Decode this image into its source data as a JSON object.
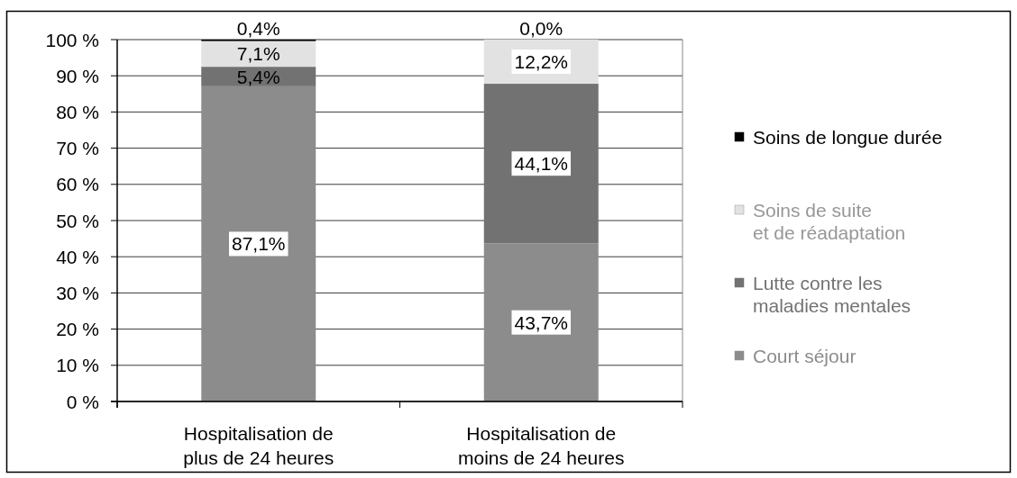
{
  "chart_data": {
    "type": "bar",
    "stacked": true,
    "categories": [
      "Hospitalisation de\nplus de 24 heures",
      "Hospitalisation de\nmoins de 24 heures"
    ],
    "series": [
      {
        "name": "Court séjour",
        "color": "#8c8c8c",
        "values": [
          87.1,
          43.7
        ],
        "value_labels": [
          "87,1%",
          "43,7%"
        ]
      },
      {
        "name": "Lutte contre les\nmaladies mentales",
        "color": "#727272",
        "values": [
          5.4,
          44.1
        ],
        "value_labels": [
          "5,4%",
          "44,1%"
        ]
      },
      {
        "name": "Soins de suite\net de réadaptation",
        "color": "#e2e2e2",
        "values": [
          7.1,
          12.2
        ],
        "value_labels": [
          "7,1%",
          "12,2%"
        ]
      },
      {
        "name": "Soins de longue durée",
        "color": "#000000",
        "values": [
          0.4,
          0.0
        ],
        "value_labels": [
          "0,4%",
          "0,0%"
        ]
      }
    ],
    "ylim": [
      0,
      100
    ],
    "yticks": [
      {
        "value": 0,
        "label": "0 %"
      },
      {
        "value": 10,
        "label": "10 %"
      },
      {
        "value": 20,
        "label": "20 %"
      },
      {
        "value": 30,
        "label": "30 %"
      },
      {
        "value": 40,
        "label": "40 %"
      },
      {
        "value": 50,
        "label": "50 %"
      },
      {
        "value": 60,
        "label": "60 %"
      },
      {
        "value": 70,
        "label": "70 %"
      },
      {
        "value": 80,
        "label": "80 %"
      },
      {
        "value": 90,
        "label": "90 %"
      },
      {
        "value": 100,
        "label": "100 %"
      }
    ],
    "grid": "y",
    "legend": "right"
  }
}
